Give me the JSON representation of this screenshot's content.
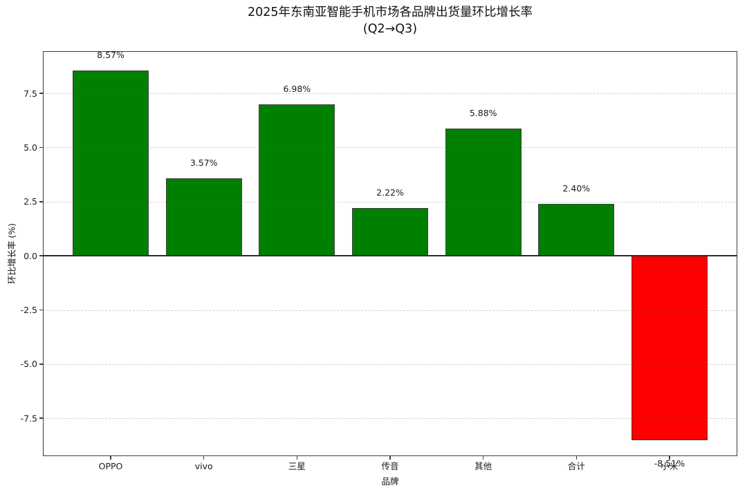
{
  "chart_data": {
    "type": "bar",
    "title": "2025年东南亚智能手机市场各品牌出货量环比增长率",
    "subtitle": "(Q2→Q3)",
    "xlabel": "品牌",
    "ylabel": "环比增长率 (%)",
    "categories": [
      "OPPO",
      "vivo",
      "三星",
      "传音",
      "其他",
      "合计",
      "小米"
    ],
    "values": [
      8.57,
      3.57,
      6.98,
      2.22,
      5.88,
      2.4,
      -8.51
    ],
    "bar_labels": [
      "8.57%",
      "3.57%",
      "6.98%",
      "2.22%",
      "5.88%",
      "2.40%",
      "-8.51%"
    ],
    "positive_color": "#008000",
    "negative_color": "#ff0000",
    "bar_edge_color": "#3f3f3f",
    "yticks": [
      7.5,
      5.0,
      2.5,
      0.0,
      -2.5,
      -5.0,
      -7.5
    ],
    "ytick_labels": [
      "7.5",
      "5.0",
      "2.5",
      "0.0",
      "-2.5",
      "-5.0",
      "-7.5"
    ],
    "ylim": [
      -9.25,
      9.45
    ],
    "grid": "horizontal-dashed",
    "zero_line": true,
    "legend": "none",
    "background": "#ffffff"
  }
}
